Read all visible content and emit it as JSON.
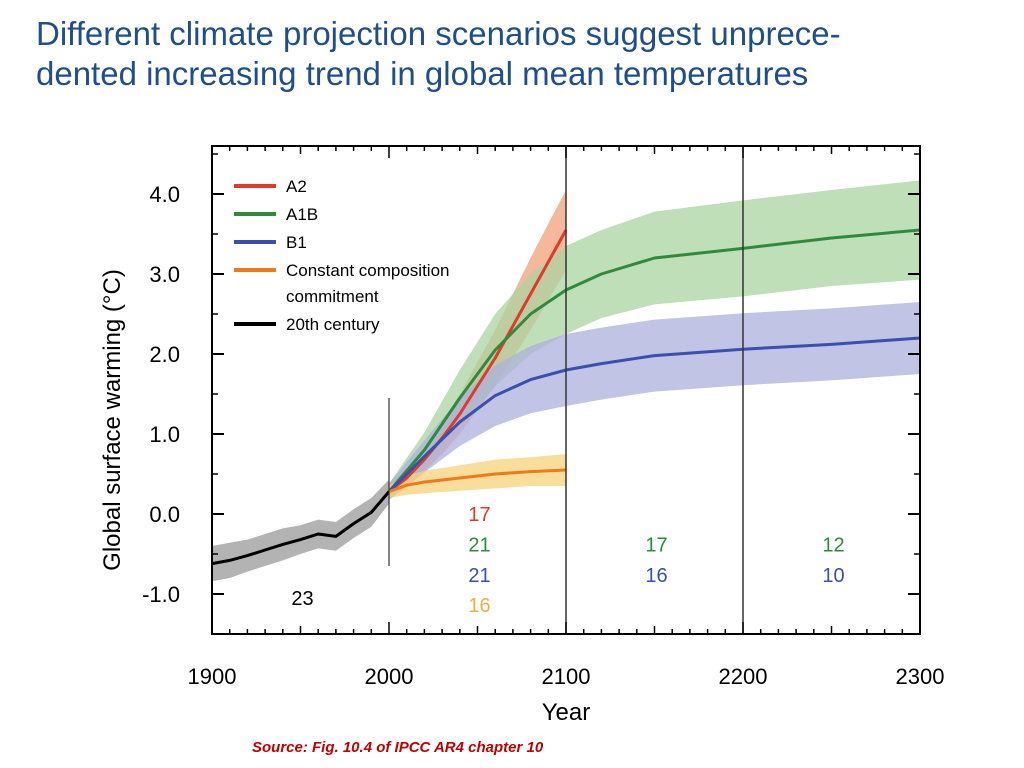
{
  "slide": {
    "title_line1": "Different climate projection scenarios suggest unprece-",
    "title_line2": "dented increasing trend in global mean temperatures",
    "source": "Source: Fig. 10.4 of IPCC AR4 chapter 10"
  },
  "colors": {
    "title": "#1f4e8c",
    "source": "#c00000",
    "A2": "#e03a2c",
    "A1B": "#2e8b3e",
    "B1": "#3a4fb0",
    "commitment": "#f07a1a",
    "century": "#000000"
  },
  "chart_data": {
    "type": "line",
    "xlabel": "Year",
    "ylabel": "Global surface warming (°C)",
    "xlim": [
      1900,
      2300
    ],
    "ylim": [
      -1.5,
      4.6
    ],
    "x_ticks": [
      1900,
      2000,
      2100,
      2200,
      2300
    ],
    "x_tick_labels": [
      "1900",
      "2000",
      "2100",
      "2200",
      "2300"
    ],
    "y_ticks": [
      -1.0,
      0.0,
      1.0,
      2.0,
      3.0,
      4.0
    ],
    "y_tick_labels": [
      "-1.0",
      "0.0",
      "1.0",
      "2.0",
      "3.0",
      "4.0"
    ],
    "period_dividers": [
      2000,
      2100,
      2200
    ],
    "legend_position": "top-left",
    "legend": [
      "A2",
      "A1B",
      "B1",
      "Constant composition commitment",
      "20th century"
    ],
    "series": [
      {
        "name": "20th century",
        "color": "#000000",
        "band_color": "#9a9a9a",
        "x": [
          1900,
          1910,
          1920,
          1930,
          1940,
          1950,
          1960,
          1970,
          1980,
          1990,
          2000
        ],
        "y": [
          -0.62,
          -0.58,
          -0.52,
          -0.45,
          -0.38,
          -0.32,
          -0.25,
          -0.28,
          -0.12,
          0.02,
          0.28
        ],
        "band": [
          0.22,
          0.22,
          0.2,
          0.2,
          0.2,
          0.18,
          0.18,
          0.18,
          0.18,
          0.18,
          0.15
        ]
      },
      {
        "name": "A2",
        "color": "#e03a2c",
        "band_color": "#f2a07a",
        "x": [
          2000,
          2010,
          2020,
          2030,
          2040,
          2050,
          2060,
          2070,
          2080,
          2090,
          2100
        ],
        "y": [
          0.28,
          0.45,
          0.68,
          0.95,
          1.25,
          1.6,
          1.95,
          2.35,
          2.75,
          3.15,
          3.55
        ],
        "band": [
          0.1,
          0.12,
          0.15,
          0.2,
          0.25,
          0.3,
          0.35,
          0.4,
          0.45,
          0.48,
          0.5
        ]
      },
      {
        "name": "A1B",
        "color": "#2e8b3e",
        "band_color": "#a9d4a0",
        "x": [
          2000,
          2020,
          2040,
          2060,
          2080,
          2100,
          2120,
          2150,
          2200,
          2250,
          2300
        ],
        "y": [
          0.28,
          0.8,
          1.45,
          2.05,
          2.5,
          2.8,
          3.0,
          3.2,
          3.32,
          3.45,
          3.55
        ],
        "band": [
          0.1,
          0.22,
          0.35,
          0.45,
          0.5,
          0.55,
          0.55,
          0.58,
          0.6,
          0.6,
          0.62
        ]
      },
      {
        "name": "B1",
        "color": "#3a4fb0",
        "band_color": "#aeb0dc",
        "x": [
          2000,
          2020,
          2040,
          2060,
          2080,
          2100,
          2120,
          2150,
          2200,
          2250,
          2300
        ],
        "y": [
          0.28,
          0.72,
          1.15,
          1.48,
          1.68,
          1.8,
          1.88,
          1.98,
          2.06,
          2.12,
          2.2
        ],
        "band": [
          0.1,
          0.2,
          0.3,
          0.38,
          0.42,
          0.45,
          0.45,
          0.45,
          0.45,
          0.45,
          0.45
        ]
      },
      {
        "name": "Constant composition commitment",
        "color": "#f07a1a",
        "band_color": "#f5d27a",
        "x": [
          2000,
          2010,
          2020,
          2040,
          2060,
          2080,
          2100
        ],
        "y": [
          0.28,
          0.36,
          0.4,
          0.45,
          0.5,
          0.53,
          0.55
        ],
        "band": [
          0.08,
          0.12,
          0.14,
          0.16,
          0.18,
          0.18,
          0.2
        ]
      }
    ],
    "model_counts": [
      {
        "x": 1950,
        "y": -1.05,
        "text": "23",
        "color": "#000000"
      },
      {
        "x": 2050,
        "y": -0.0,
        "text": "17",
        "color": "#e03a2c"
      },
      {
        "x": 2050,
        "y": -0.38,
        "text": "21",
        "color": "#2e8b3e"
      },
      {
        "x": 2050,
        "y": -0.76,
        "text": "21",
        "color": "#3a4fb0"
      },
      {
        "x": 2050,
        "y": -1.14,
        "text": "16",
        "color": "#f0b040"
      },
      {
        "x": 2150,
        "y": -0.38,
        "text": "17",
        "color": "#2e8b3e"
      },
      {
        "x": 2150,
        "y": -0.76,
        "text": "16",
        "color": "#3a4fb0"
      },
      {
        "x": 2250,
        "y": -0.38,
        "text": "12",
        "color": "#2e8b3e"
      },
      {
        "x": 2250,
        "y": -0.76,
        "text": "10",
        "color": "#3a4fb0"
      }
    ]
  }
}
